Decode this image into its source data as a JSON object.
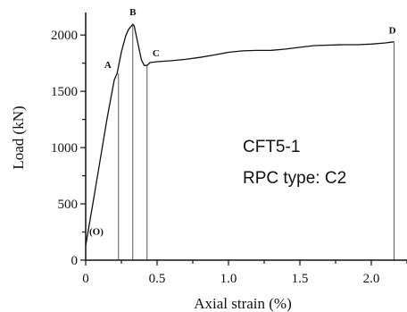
{
  "chart_data": {
    "type": "line",
    "title": "",
    "xlabel": "Axial strain (%)",
    "ylabel": "Load (kN)",
    "xlim": [
      0,
      2.25
    ],
    "ylim": [
      0,
      2200
    ],
    "x_ticks": [
      {
        "value": 0,
        "label": "0"
      },
      {
        "value": 0.5,
        "label": "0.5"
      },
      {
        "value": 1.0,
        "label": "1.0"
      },
      {
        "value": 1.5,
        "label": "1.5"
      },
      {
        "value": 2.0,
        "label": "2.0"
      }
    ],
    "y_ticks": [
      {
        "value": 0,
        "label": "0"
      },
      {
        "value": 500,
        "label": "500"
      },
      {
        "value": 1000,
        "label": "1000"
      },
      {
        "value": 1500,
        "label": "1500"
      },
      {
        "value": 2000,
        "label": "2000"
      }
    ],
    "grid": false,
    "series": [
      {
        "name": "",
        "x": [
          0,
          0.05,
          0.1,
          0.15,
          0.2,
          0.22,
          0.25,
          0.28,
          0.3,
          0.32,
          0.33,
          0.34,
          0.35,
          0.37,
          0.39,
          0.41,
          0.43,
          0.45,
          0.5,
          0.6,
          0.7,
          0.8,
          0.9,
          1.0,
          1.1,
          1.2,
          1.3,
          1.4,
          1.5,
          1.6,
          1.7,
          1.8,
          1.9,
          2.0,
          2.1,
          2.16
        ],
        "y": [
          130,
          500,
          880,
          1260,
          1600,
          1660,
          1850,
          1990,
          2050,
          2080,
          2095,
          2080,
          2020,
          1900,
          1780,
          1730,
          1730,
          1755,
          1760,
          1775,
          1790,
          1805,
          1820,
          1840,
          1855,
          1865,
          1870,
          1880,
          1890,
          1900,
          1905,
          1915,
          1920,
          1925,
          1930,
          1935
        ]
      }
    ],
    "key_points": [
      {
        "label": "(O)",
        "x": 0.0,
        "y": 130
      },
      {
        "label": "A",
        "x": 0.23,
        "y": 1660
      },
      {
        "label": "B",
        "x": 0.33,
        "y": 2095
      },
      {
        "label": "C",
        "x": 0.43,
        "y": 1730
      },
      {
        "label": "D",
        "x": 2.16,
        "y": 1935
      }
    ],
    "annotations": [
      "CFT5-1",
      "RPC type: C2"
    ]
  }
}
